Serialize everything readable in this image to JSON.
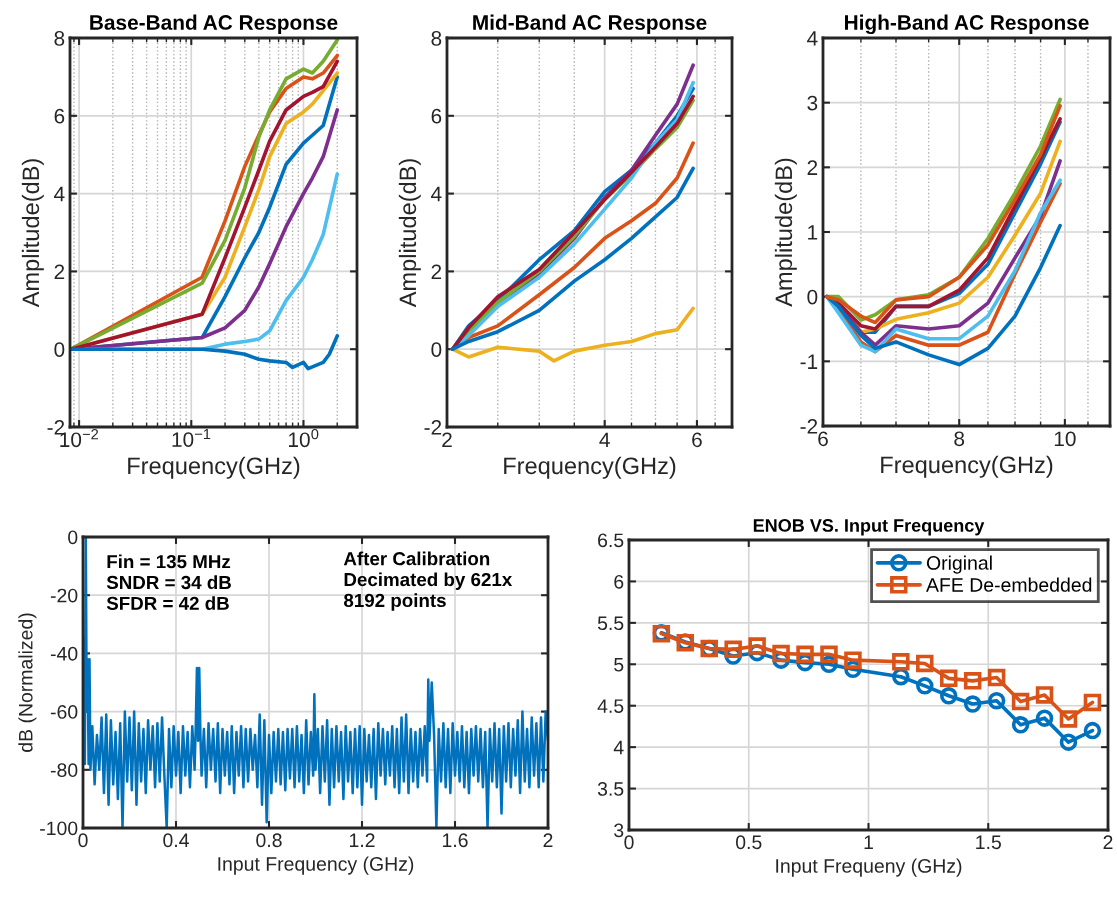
{
  "chart_data": [
    {
      "type": "line",
      "title": "Base-Band AC Response",
      "xlabel": "Frequency(GHz)",
      "ylabel": "Amplitude(dB)",
      "log": "x",
      "grid": true,
      "xlim": [
        0.0083,
        3.0
      ],
      "ylim": [
        -2,
        8
      ],
      "xticks": [
        {
          "value": 0.009,
          "label": null
        },
        {
          "value": 0.01,
          "label": "10$^{−2}$"
        },
        {
          "value": 0.02,
          "label": null
        },
        {
          "value": 0.03,
          "label": null
        },
        {
          "value": 0.04,
          "label": null
        },
        {
          "value": 0.05,
          "label": null
        },
        {
          "value": 0.06,
          "label": null
        },
        {
          "value": 0.07,
          "label": null
        },
        {
          "value": 0.08,
          "label": null
        },
        {
          "value": 0.09,
          "label": null
        },
        {
          "value": 0.1,
          "label": "10$^{−1}$"
        },
        {
          "value": 0.2,
          "label": null
        },
        {
          "value": 0.3,
          "label": null
        },
        {
          "value": 0.4,
          "label": null
        },
        {
          "value": 0.5,
          "label": null
        },
        {
          "value": 0.6,
          "label": null
        },
        {
          "value": 0.7,
          "label": null
        },
        {
          "value": 0.8,
          "label": null
        },
        {
          "value": 0.9,
          "label": null
        },
        {
          "value": 1,
          "label": "10$^{0}$"
        },
        {
          "value": 2,
          "label": null
        },
        {
          "value": 3,
          "label": null
        }
      ],
      "yticks": [
        -2,
        0,
        2,
        4,
        6,
        8
      ],
      "x": [
        0.0085,
        0.125,
        0.2,
        0.3,
        0.4,
        0.5,
        0.7,
        1.0,
        1.2,
        1.5,
        2.0
      ],
      "series": [
        {
          "color": "#0072bd",
          "values": [
            0,
            0.3,
            1.35,
            2.35,
            3.0,
            3.65,
            4.75,
            5.3,
            5.5,
            5.75,
            7.0
          ]
        },
        {
          "color": "#d95319",
          "values": [
            0,
            1.85,
            3.3,
            4.7,
            5.5,
            6.1,
            6.7,
            7.0,
            6.95,
            7.1,
            7.55
          ]
        },
        {
          "color": "#edb120",
          "values": [
            0,
            0.9,
            1.85,
            3.15,
            4.1,
            4.95,
            5.8,
            6.1,
            6.3,
            6.65,
            7.1
          ]
        },
        {
          "color": "#7e2f8e",
          "values": [
            0,
            0.3,
            0.55,
            1.0,
            1.6,
            2.2,
            3.15,
            4.0,
            4.4,
            4.95,
            6.15
          ]
        },
        {
          "color": "#77ac30",
          "values": [
            0,
            1.7,
            2.8,
            4.15,
            5.45,
            6.15,
            6.95,
            7.2,
            7.1,
            7.4,
            7.95
          ]
        },
        {
          "color": "#4dbeee",
          "values": [
            0,
            0.0,
            0.13,
            0.2,
            0.26,
            0.47,
            1.25,
            1.85,
            2.3,
            2.95,
            4.5
          ]
        },
        {
          "color": "#a2142f",
          "values": [
            0,
            0.9,
            2.35,
            3.65,
            4.6,
            5.35,
            6.15,
            6.5,
            6.6,
            6.75,
            7.4
          ]
        },
        {
          "color": "#0072bd",
          "x": [
            0.0085,
            0.125,
            0.2,
            0.3,
            0.4,
            0.5,
            0.7,
            0.8,
            1.0,
            1.1,
            1.5,
            1.7,
            2.0
          ],
          "values": [
            0,
            0.0,
            -0.05,
            -0.13,
            -0.26,
            -0.3,
            -0.34,
            -0.47,
            -0.34,
            -0.5,
            -0.34,
            -0.13,
            0.34
          ]
        }
      ]
    },
    {
      "type": "line",
      "title": "Mid-Band AC Response",
      "xlabel": "Frequency(GHz)",
      "ylabel": "Amplitude(dB)",
      "log": "x",
      "grid": true,
      "xlim": [
        2,
        7
      ],
      "ylim": [
        -2,
        8
      ],
      "xticks": [
        2,
        {
          "value": 2.5,
          "label": null
        },
        {
          "value": 3,
          "label": null
        },
        {
          "value": 3.5,
          "label": null
        },
        4,
        {
          "value": 4.5,
          "label": null
        },
        {
          "value": 5,
          "label": null
        },
        {
          "value": 5.5,
          "label": null
        },
        6,
        {
          "value": 6.5,
          "label": null
        }
      ],
      "yticks": [
        -2,
        0,
        2,
        4,
        6,
        8
      ],
      "x": [
        2.05,
        2.2,
        2.5,
        3,
        3.5,
        4,
        4.5,
        5,
        5.5,
        5.9
      ],
      "series": [
        {
          "color": "#0072bd",
          "values": [
            0,
            0.6,
            1.25,
            2.3,
            3.05,
            4.05,
            4.6,
            5.3,
            6.0,
            6.7
          ]
        },
        {
          "color": "#d95319",
          "values": [
            0,
            0.3,
            0.6,
            1.4,
            2.1,
            2.85,
            3.3,
            3.75,
            4.4,
            5.3
          ]
        },
        {
          "color": "#edb120",
          "x": [
            2.05,
            2.2,
            2.5,
            3,
            3.2,
            3.5,
            4,
            4.5,
            5,
            5.5,
            5.9
          ],
          "values": [
            0,
            -0.2,
            0.05,
            -0.05,
            -0.3,
            -0.05,
            0.1,
            0.2,
            0.4,
            0.5,
            1.05
          ]
        },
        {
          "color": "#7e2f8e",
          "values": [
            0,
            0.4,
            1.15,
            1.95,
            2.85,
            3.9,
            4.6,
            5.5,
            6.3,
            7.3
          ]
        },
        {
          "color": "#77ac30",
          "values": [
            0,
            0.45,
            1.2,
            2.0,
            2.9,
            3.85,
            4.5,
            5.15,
            5.7,
            6.4
          ]
        },
        {
          "color": "#4dbeee",
          "values": [
            0,
            0.35,
            1.1,
            1.85,
            2.7,
            3.6,
            4.4,
            5.3,
            5.9,
            6.85
          ]
        },
        {
          "color": "#a2142f",
          "values": [
            0,
            0.55,
            1.35,
            2.05,
            3.0,
            3.85,
            4.55,
            5.2,
            5.8,
            6.5
          ]
        },
        {
          "color": "#0072bd",
          "values": [
            0,
            0.2,
            0.45,
            1.0,
            1.75,
            2.3,
            2.85,
            3.4,
            3.9,
            4.65
          ]
        }
      ]
    },
    {
      "type": "line",
      "title": "High-Band AC Response",
      "xlabel": "Frequency(GHz)",
      "ylabel": "Amplitude(dB)",
      "log": "x",
      "grid": true,
      "xlim": [
        6,
        11
      ],
      "ylim": [
        -2,
        4
      ],
      "xticks": [
        6,
        {
          "value": 6.5,
          "label": null
        },
        {
          "value": 7,
          "label": null
        },
        {
          "value": 7.5,
          "label": null
        },
        8,
        {
          "value": 8.5,
          "label": null
        },
        {
          "value": 9,
          "label": null
        },
        {
          "value": 9.5,
          "label": null
        },
        10,
        {
          "value": 10.5,
          "label": null
        }
      ],
      "yticks": [
        -2,
        -1,
        0,
        1,
        2,
        3,
        4
      ],
      "x": [
        6.05,
        6.2,
        6.5,
        6.7,
        7,
        7.5,
        8,
        8.5,
        9,
        9.5,
        9.9
      ],
      "series": [
        {
          "color": "#0072bd",
          "values": [
            0,
            -0.1,
            -0.55,
            -0.55,
            -0.15,
            -0.15,
            0.05,
            0.5,
            1.3,
            2.05,
            2.7
          ]
        },
        {
          "color": "#d95319",
          "values": [
            0,
            -0.2,
            -0.7,
            -0.85,
            -0.6,
            -0.75,
            -0.75,
            -0.55,
            0.35,
            1.15,
            1.75
          ]
        },
        {
          "color": "#edb120",
          "values": [
            0,
            -0.1,
            -0.55,
            -0.5,
            -0.35,
            -0.25,
            -0.1,
            0.3,
            0.95,
            1.6,
            2.4
          ]
        },
        {
          "color": "#7e2f8e",
          "values": [
            0,
            -0.15,
            -0.55,
            -0.75,
            -0.45,
            -0.5,
            -0.45,
            -0.1,
            0.6,
            1.25,
            2.1
          ]
        },
        {
          "color": "#77ac30",
          "values": [
            0,
            0,
            -0.36,
            -0.28,
            -0.05,
            0.03,
            0.3,
            0.9,
            1.6,
            2.33,
            3.05
          ]
        },
        {
          "color": "#4dbeee",
          "values": [
            0,
            -0.25,
            -0.75,
            -0.85,
            -0.5,
            -0.65,
            -0.65,
            -0.3,
            0.4,
            1.3,
            1.8
          ]
        },
        {
          "color": "#a2142f",
          "values": [
            0,
            -0.1,
            -0.45,
            -0.5,
            -0.15,
            -0.15,
            0.1,
            0.6,
            1.4,
            2.15,
            2.75
          ]
        },
        {
          "color": "#0072bd",
          "values": [
            0,
            -0.15,
            -0.6,
            -0.8,
            -0.7,
            -0.9,
            -1.05,
            -0.8,
            -0.3,
            0.45,
            1.1
          ]
        },
        {
          "color": "#d95319",
          "values": [
            0,
            -0.05,
            -0.3,
            -0.4,
            -0.05,
            0.0,
            0.3,
            0.8,
            1.5,
            2.2,
            2.95
          ]
        }
      ]
    },
    {
      "type": "line",
      "xlabel": "Input Frequency (GHz)",
      "ylabel": "dB (Normalized)",
      "grid": true,
      "xlim": [
        0,
        2
      ],
      "ylim": [
        -100,
        0
      ],
      "xticks": [
        0,
        0.4,
        0.8,
        1.2,
        1.6,
        2
      ],
      "yticks": [
        -100,
        -80,
        -60,
        -40,
        -20,
        0
      ],
      "annotations": [
        "Fin = 135 MHz\nSNDR = 34 dB\nSFDR = 42 dB",
        "After Calibration\nDecimated by 621x\n8192 points"
      ],
      "series": [
        {
          "color": "#0072bd",
          "x": [
            0,
            0.004,
            0.008,
            0.012,
            0.016,
            0.02,
            0.024,
            0.028,
            0.032,
            0.04,
            0.05,
            0.06,
            0.07,
            0.08,
            0.09,
            0.1,
            0.11,
            0.12,
            0.13,
            0.14,
            0.15,
            0.16,
            0.17,
            0.18,
            0.19,
            0.2,
            0.21,
            0.22,
            0.23,
            0.24,
            0.25,
            0.26,
            0.27,
            0.28,
            0.29,
            0.3,
            0.31,
            0.32,
            0.33,
            0.34,
            0.35,
            0.36,
            0.37,
            0.38,
            0.39,
            0.4,
            0.41,
            0.42,
            0.43,
            0.44,
            0.45,
            0.46,
            0.47,
            0.48,
            0.485,
            0.49,
            0.495,
            0.5,
            0.505,
            0.51,
            0.52,
            0.53,
            0.54,
            0.55,
            0.56,
            0.57,
            0.58,
            0.59,
            0.6,
            0.61,
            0.62,
            0.63,
            0.64,
            0.65,
            0.66,
            0.67,
            0.68,
            0.69,
            0.7,
            0.71,
            0.72,
            0.73,
            0.74,
            0.75,
            0.76,
            0.77,
            0.78,
            0.79,
            0.8,
            0.81,
            0.82,
            0.83,
            0.84,
            0.85,
            0.86,
            0.87,
            0.88,
            0.89,
            0.9,
            0.91,
            0.92,
            0.93,
            0.94,
            0.95,
            0.96,
            0.97,
            0.98,
            0.99,
            0.995,
            1.0,
            1.01,
            1.02,
            1.03,
            1.04,
            1.05,
            1.06,
            1.07,
            1.08,
            1.09,
            1.1,
            1.11,
            1.12,
            1.13,
            1.14,
            1.15,
            1.16,
            1.17,
            1.18,
            1.19,
            1.2,
            1.21,
            1.22,
            1.23,
            1.24,
            1.25,
            1.26,
            1.27,
            1.28,
            1.29,
            1.3,
            1.31,
            1.32,
            1.33,
            1.34,
            1.35,
            1.36,
            1.37,
            1.38,
            1.39,
            1.4,
            1.41,
            1.42,
            1.43,
            1.44,
            1.45,
            1.46,
            1.47,
            1.48,
            1.485,
            1.49,
            1.5,
            1.51,
            1.52,
            1.53,
            1.54,
            1.55,
            1.56,
            1.57,
            1.58,
            1.59,
            1.6,
            1.61,
            1.62,
            1.63,
            1.64,
            1.65,
            1.66,
            1.67,
            1.68,
            1.69,
            1.7,
            1.71,
            1.72,
            1.73,
            1.74,
            1.75,
            1.76,
            1.77,
            1.78,
            1.79,
            1.8,
            1.81,
            1.82,
            1.83,
            1.84,
            1.85,
            1.86,
            1.87,
            1.88,
            1.89,
            1.9,
            1.91,
            1.92,
            1.93,
            1.94,
            1.95,
            1.96,
            1.97,
            1.98,
            1.99,
            2.0
          ],
          "values": [
            -72,
            -35,
            -78,
            0,
            -60,
            -42,
            -78,
            -42,
            -80,
            -65,
            -85,
            -68,
            -80,
            -62,
            -88,
            -61,
            -92,
            -63,
            -85,
            -67,
            -90,
            -64,
            -100,
            -60,
            -84,
            -62,
            -87,
            -60,
            -92,
            -64,
            -84,
            -66,
            -88,
            -63,
            -80,
            -65,
            -86,
            -64,
            -84,
            -62,
            -82,
            -100,
            -66,
            -86,
            -65,
            -82,
            -67,
            -88,
            -65,
            -82,
            -67,
            -86,
            -65,
            -80,
            -65,
            -45,
            -70,
            -45,
            -68,
            -82,
            -66,
            -86,
            -64,
            -80,
            -66,
            -84,
            -64,
            -88,
            -66,
            -82,
            -67,
            -85,
            -65,
            -88,
            -67,
            -82,
            -65,
            -86,
            -66,
            -84,
            -66,
            -80,
            -68,
            -86,
            -61,
            -92,
            -63,
            -98,
            -68,
            -88,
            -67,
            -84,
            -66,
            -85,
            -67,
            -87,
            -66,
            -83,
            -66,
            -86,
            -65,
            -84,
            -68,
            -88,
            -63,
            -85,
            -67,
            -82,
            -54,
            -80,
            -66,
            -88,
            -65,
            -84,
            -63,
            -92,
            -66,
            -86,
            -65,
            -84,
            -67,
            -90,
            -65,
            -84,
            -67,
            -88,
            -66,
            -86,
            -65,
            -92,
            -66,
            -84,
            -68,
            -86,
            -66,
            -90,
            -64,
            -82,
            -66,
            -85,
            -67,
            -82,
            -65,
            -86,
            -66,
            -88,
            -62,
            -84,
            -61,
            -88,
            -66,
            -84,
            -67,
            -86,
            -66,
            -82,
            -65,
            -84,
            -49,
            -70,
            -50,
            -68,
            -100,
            -66,
            -84,
            -64,
            -86,
            -66,
            -88,
            -64,
            -82,
            -67,
            -84,
            -65,
            -86,
            -67,
            -88,
            -66,
            -82,
            -65,
            -84,
            -66,
            -86,
            -67,
            -100,
            -66,
            -84,
            -64,
            -86,
            -66,
            -95,
            -65,
            -84,
            -64,
            -86,
            -66,
            -82,
            -63,
            -88,
            -60,
            -84,
            -66,
            -86,
            -62,
            -82,
            -64,
            -86,
            -62,
            -84,
            -60,
            -70
          ]
        }
      ]
    },
    {
      "type": "line",
      "title": "ENOB VS. Input Frequency",
      "xlabel": "Input Frequeny (GHz)",
      "grid": true,
      "legend": "top right",
      "xlim": [
        0,
        2
      ],
      "ylim": [
        3,
        6.5
      ],
      "xticks": [
        0,
        0.5,
        1,
        1.5,
        2
      ],
      "yticks": [
        3,
        3.5,
        4,
        4.5,
        5,
        5.5,
        6,
        6.5
      ],
      "x": [
        0.135,
        0.235,
        0.335,
        0.435,
        0.535,
        0.635,
        0.735,
        0.835,
        0.935,
        1.135,
        1.235,
        1.335,
        1.435,
        1.535,
        1.635,
        1.735,
        1.835,
        1.935
      ],
      "series": [
        {
          "name": "Original",
          "color": "#0072bd",
          "marker": "circle",
          "values": [
            5.38,
            5.27,
            5.19,
            5.1,
            5.14,
            5.05,
            5.02,
            5.0,
            4.94,
            4.85,
            4.74,
            4.62,
            4.52,
            4.56,
            4.27,
            4.35,
            4.06,
            4.2
          ]
        },
        {
          "name": "AFE De-embedded",
          "color": "#d95319",
          "marker": "square",
          "values": [
            5.37,
            5.26,
            5.19,
            5.18,
            5.22,
            5.13,
            5.12,
            5.12,
            5.05,
            5.03,
            5.01,
            4.83,
            4.8,
            4.84,
            4.55,
            4.63,
            4.34,
            4.54
          ]
        }
      ]
    }
  ]
}
